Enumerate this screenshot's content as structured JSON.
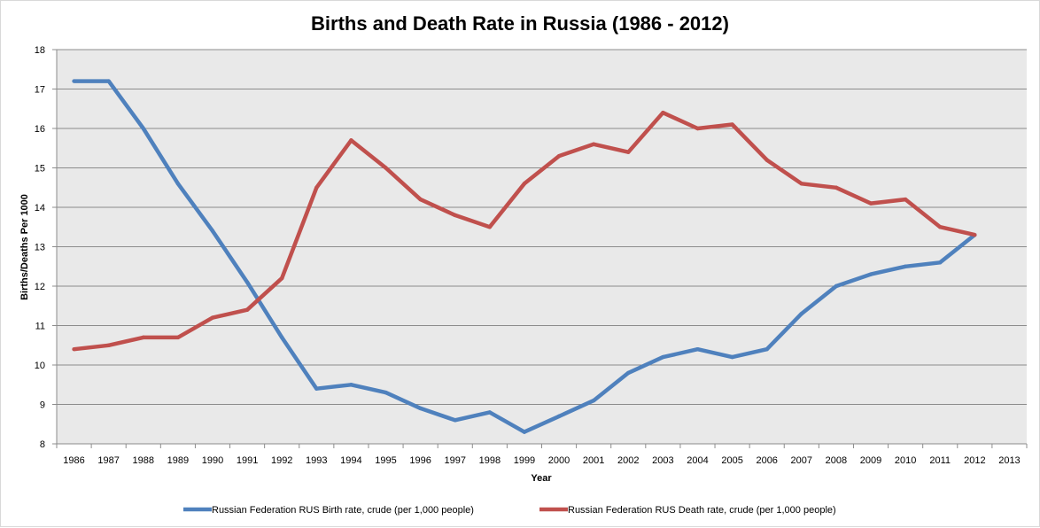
{
  "chart_data": {
    "type": "line",
    "title": "Births and Death Rate in Russia (1986 - 2012)",
    "xlabel": "Year",
    "ylabel": "Births/Deaths Per 1000",
    "ylim": [
      8,
      18
    ],
    "yticks": [
      "8",
      "9",
      "10",
      "11",
      "12",
      "13",
      "14",
      "15",
      "16",
      "17",
      "18"
    ],
    "grid": true,
    "legend_position": "bottom",
    "plot_background": "#e9e9e9",
    "categories": [
      "1986",
      "1987",
      "1988",
      "1989",
      "1990",
      "1991",
      "1992",
      "1993",
      "1994",
      "1995",
      "1996",
      "1997",
      "1998",
      "1999",
      "2000",
      "2001",
      "2002",
      "2003",
      "2004",
      "2005",
      "2006",
      "2007",
      "2008",
      "2009",
      "2010",
      "2011",
      "2012",
      "2013"
    ],
    "series": [
      {
        "name": "Russian Federation RUS Birth rate, crude (per 1,000 people)",
        "color": "#4f81bd",
        "values": [
          17.2,
          17.2,
          16.0,
          14.6,
          13.4,
          12.1,
          10.7,
          9.4,
          9.5,
          9.3,
          8.9,
          8.6,
          8.8,
          8.3,
          8.7,
          9.1,
          9.8,
          10.2,
          10.4,
          10.2,
          10.4,
          11.3,
          12.0,
          12.3,
          12.5,
          12.6,
          13.3,
          null
        ]
      },
      {
        "name": "Russian Federation RUS Death rate, crude (per 1,000 people)",
        "color": "#c0504d",
        "values": [
          10.4,
          10.5,
          10.7,
          10.7,
          11.2,
          11.4,
          12.2,
          14.5,
          15.7,
          15.0,
          14.2,
          13.8,
          13.5,
          14.6,
          15.3,
          15.6,
          15.4,
          16.4,
          16.0,
          16.1,
          15.2,
          14.6,
          14.5,
          14.1,
          14.2,
          13.5,
          13.3,
          null
        ]
      }
    ]
  }
}
